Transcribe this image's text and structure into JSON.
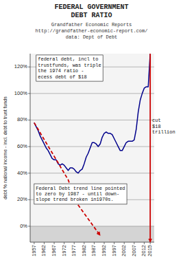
{
  "chart_data": {
    "type": "line",
    "title": [
      "FEDERAL GOVERNMENT",
      "DEBT RATIO"
    ],
    "subtitle": [
      "Grandfather Economic Reports",
      "http://grandfather-economic-report.com/",
      "data: Dept of Debt"
    ],
    "y_label": "debt % national income - incl. debt to trust funds",
    "x": [
      1957,
      1958,
      1959,
      1960,
      1961,
      1962,
      1963,
      1964,
      1965,
      1966,
      1967,
      1968,
      1969,
      1970,
      1971,
      1972,
      1973,
      1974,
      1975,
      1976,
      1977,
      1978,
      1979,
      1980,
      1981,
      1982,
      1983,
      1984,
      1985,
      1986,
      1987,
      1988,
      1989,
      1990,
      1991,
      1992,
      1993,
      1994,
      1995,
      1996,
      1997,
      1998,
      1999,
      2000,
      2001,
      2002,
      2003,
      2004,
      2005,
      2006,
      2007,
      2008,
      2009,
      2010,
      2011,
      2012,
      2013,
      2014,
      2015
    ],
    "series": [
      {
        "color": "#00008B",
        "line_style": "solid",
        "values": [
          78,
          75,
          72,
          68,
          65,
          62,
          59,
          57,
          54,
          51,
          50,
          50,
          47,
          46,
          47,
          46,
          44,
          42,
          44,
          44,
          43,
          41,
          40,
          42,
          43,
          47,
          52,
          55,
          59,
          63,
          63,
          62,
          60,
          62,
          67,
          70,
          71,
          70,
          70,
          69,
          66,
          63,
          60,
          57,
          57,
          60,
          63,
          64,
          64,
          64,
          65,
          73,
          86,
          95,
          100,
          104,
          105,
          105,
          130
        ]
      },
      {
        "color": "#CC0000",
        "line_style": "dashed",
        "x": [
          1957,
          1974,
          1978,
          1990
        ],
        "values": [
          78,
          35,
          18,
          -7
        ]
      }
    ],
    "reference_line": {
      "x": 2015,
      "color": "#CC0000"
    },
    "band": {
      "from": -12,
      "to": 0,
      "color": "#d4d4d4"
    },
    "xlim": [
      1955,
      2017
    ],
    "ylim": [
      -12,
      130
    ],
    "xticks": [
      1957,
      1962,
      1967,
      1972,
      1977,
      1982,
      1987,
      1992,
      1997,
      2002,
      2007,
      2012,
      2015
    ],
    "yticks": [
      {
        "value": 0,
        "label": "0%"
      },
      {
        "value": 20,
        "label": "20%"
      },
      {
        "value": 40,
        "label": "40%"
      },
      {
        "value": 60,
        "label": "60%"
      },
      {
        "value": 80,
        "label": "80%"
      },
      {
        "value": 100,
        "label": "100%"
      },
      {
        "value": 120,
        "label": "120%"
      }
    ],
    "grid": true,
    "annotations": [
      {
        "text": "federal debt, incl to\ntrustfunds, was triple\nthe 1974 ratio -\necess debt of $18",
        "x": 1958,
        "y": 129,
        "box": true
      },
      {
        "text": "Federal Debt trend line pointed\nto zero by 1987 - until down-\nslope trend broken in1970s.",
        "x": 1957,
        "y": 32,
        "box": true
      },
      {
        "text": "cut\n$18\ntrillion",
        "x": 2016.0,
        "y": 75,
        "box": false
      }
    ]
  }
}
